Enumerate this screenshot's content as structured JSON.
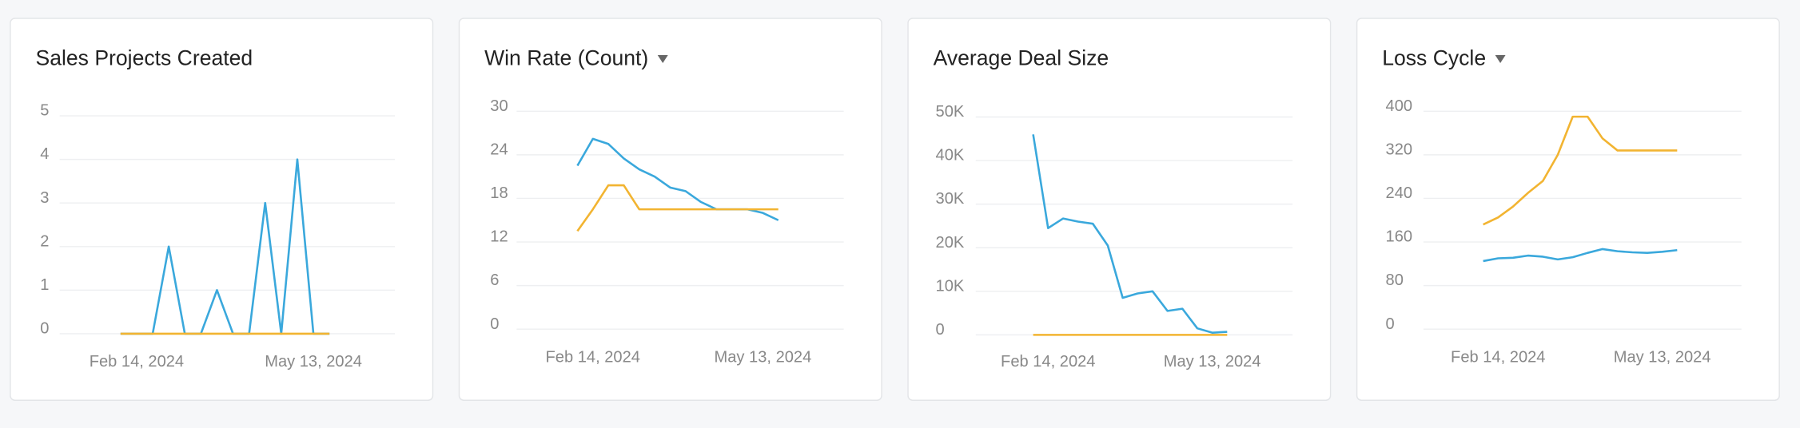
{
  "charts": [
    {
      "chart_data": {
        "type": "line",
        "title": "Sales Projects Created",
        "categories": [
          null,
          "Feb 14, 2024",
          null,
          null,
          null,
          null,
          null,
          null,
          null,
          null,
          null,
          null,
          "May 13, 2024",
          null
        ],
        "series": [
          {
            "color": "#3aa8dc",
            "values": [
              0,
              0,
              0,
              2,
              0,
              0,
              1,
              0,
              0,
              3,
              0,
              4,
              0,
              0
            ]
          },
          {
            "color": "#f2b431",
            "values": [
              0,
              0,
              0,
              0,
              0,
              0,
              0,
              0,
              0,
              0,
              0,
              0,
              0,
              0
            ]
          }
        ],
        "ylim": [
          0,
          5
        ],
        "yticks": [
          0,
          1,
          2,
          3,
          4,
          5
        ],
        "grid": true
      }
    },
    {
      "chart_data": {
        "type": "line",
        "title": "Win Rate (Count)",
        "dropdown": true,
        "categories": [
          null,
          "Feb 14, 2024",
          null,
          null,
          null,
          null,
          null,
          null,
          null,
          null,
          null,
          null,
          "May 13, 2024",
          null
        ],
        "series": [
          {
            "color": "#3aa8dc",
            "values": [
              22.5,
              26.2,
              25.5,
              23.5,
              22,
              21,
              19.5,
              19,
              17.5,
              16.5,
              16.5,
              16.5,
              16,
              15
            ]
          },
          {
            "color": "#f2b431",
            "values": [
              13.5,
              16.5,
              19.8,
              19.8,
              16.5,
              16.5,
              16.5,
              16.5,
              16.5,
              16.5,
              16.5,
              16.5,
              16.5,
              16.5
            ]
          }
        ],
        "ylim": [
          0,
          30
        ],
        "yticks": [
          0,
          6,
          12,
          18,
          24,
          30
        ],
        "grid": true
      }
    },
    {
      "chart_data": {
        "type": "line",
        "title": "Average Deal Size",
        "categories": [
          null,
          "Feb 14, 2024",
          null,
          null,
          null,
          null,
          null,
          null,
          null,
          null,
          null,
          null,
          "May 13, 2024",
          null
        ],
        "series": [
          {
            "color": "#3aa8dc",
            "values": [
              46000,
              24500,
              26700,
              26000,
              25500,
              20500,
              8500,
              9500,
              10000,
              5500,
              6000,
              1500,
              500,
              700
            ]
          },
          {
            "color": "#f2b431",
            "values": [
              0,
              0,
              0,
              0,
              0,
              0,
              0,
              0,
              0,
              0,
              0,
              0,
              0,
              0
            ]
          }
        ],
        "ylim": [
          0,
          50000
        ],
        "yticks": [
          0,
          {
            "value": 10000,
            "label": "10K"
          },
          {
            "value": 20000,
            "label": "20K"
          },
          {
            "value": 30000,
            "label": "30K"
          },
          {
            "value": 40000,
            "label": "40K"
          },
          {
            "value": 50000,
            "label": "50K"
          }
        ],
        "grid": true
      }
    },
    {
      "chart_data": {
        "type": "line",
        "title": "Loss Cycle",
        "dropdown": true,
        "categories": [
          null,
          "Feb 14, 2024",
          null,
          null,
          null,
          null,
          null,
          null,
          null,
          null,
          null,
          null,
          "May 13, 2024",
          null
        ],
        "series": [
          {
            "color": "#3aa8dc",
            "values": [
              125,
              130,
              131,
              135,
              133,
              128,
              132,
              140,
              147,
              143,
              141,
              140,
              142,
              145
            ]
          },
          {
            "color": "#f2b431",
            "values": [
              192,
              205,
              225,
              250,
              272,
              320,
              390,
              390,
              350,
              328,
              328,
              328,
              328,
              328
            ]
          }
        ],
        "ylim": [
          0,
          400
        ],
        "yticks": [
          0,
          80,
          160,
          240,
          320,
          400
        ],
        "grid": true
      }
    }
  ]
}
